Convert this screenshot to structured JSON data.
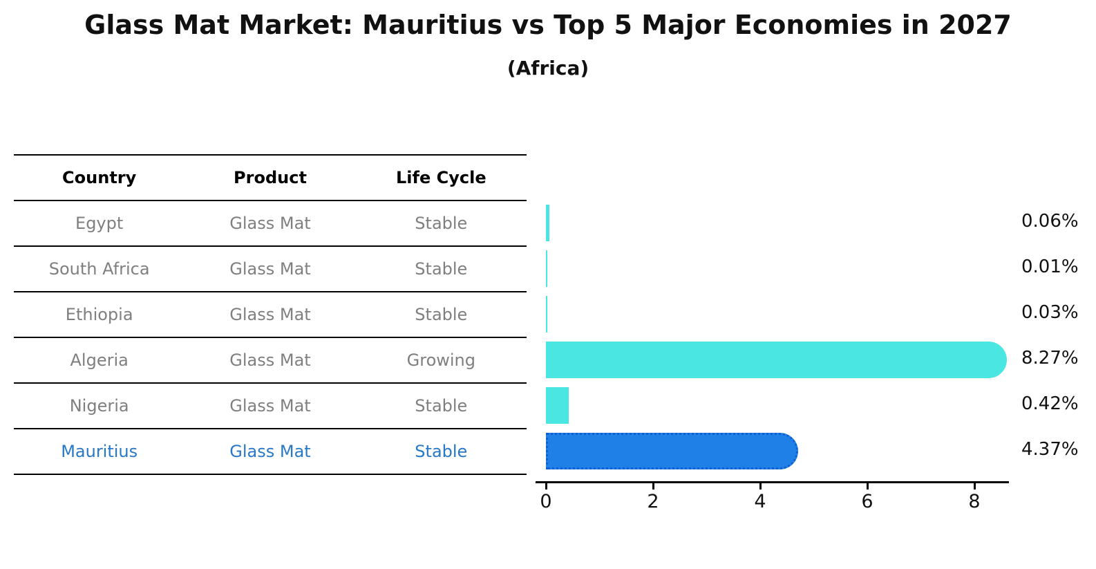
{
  "header": {
    "title": "Glass Mat Market: Mauritius vs Top 5 Major Economies in 2027",
    "subtitle": "(Africa)"
  },
  "table": {
    "headers": [
      "Country",
      "Product",
      "Life Cycle"
    ],
    "rows": [
      {
        "country": "Egypt",
        "product": "Glass Mat",
        "life_cycle": "Stable",
        "highlight": false
      },
      {
        "country": "South Africa",
        "product": "Glass Mat",
        "life_cycle": "Stable",
        "highlight": false
      },
      {
        "country": "Ethiopia",
        "product": "Glass Mat",
        "life_cycle": "Stable",
        "highlight": false
      },
      {
        "country": "Algeria",
        "product": "Glass Mat",
        "life_cycle": "Growing",
        "highlight": false
      },
      {
        "country": "Nigeria",
        "product": "Glass Mat",
        "life_cycle": "Stable",
        "highlight": false
      },
      {
        "country": "Mauritius",
        "product": "Glass Mat",
        "life_cycle": "Stable",
        "highlight": true
      }
    ]
  },
  "chart_data": {
    "type": "bar",
    "orientation": "horizontal",
    "title": "Glass Mat Market: Mauritius vs Top 5 Major Economies in 2027",
    "subtitle": "(Africa)",
    "categories": [
      "Egypt",
      "South Africa",
      "Ethiopia",
      "Algeria",
      "Nigeria",
      "Mauritius"
    ],
    "values": [
      0.06,
      0.01,
      0.03,
      8.27,
      0.42,
      4.37
    ],
    "value_labels": [
      "0.06%",
      "0.01%",
      "0.03%",
      "8.27%",
      "0.42%",
      "4.37%"
    ],
    "xticks": [
      "0",
      "2",
      "4",
      "6",
      "8"
    ],
    "xtick_values": [
      0,
      2,
      4,
      6,
      8
    ],
    "xlim": [
      0,
      8.65
    ],
    "grid": false,
    "legend": "none",
    "highlight_index": 5
  },
  "colors": {
    "default_bar": "#4ae6e1",
    "highlight_bar": "#1f80e8",
    "highlight_bar_border": "#0f5fd0",
    "highlight_text": "#2878c8",
    "muted_text": "#7f7f7f",
    "text": "#111111",
    "line": "#000000"
  }
}
